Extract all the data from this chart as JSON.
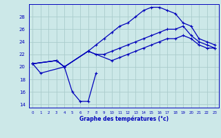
{
  "background_color": "#cce8e8",
  "grid_color": "#aacccc",
  "line_color": "#0000bb",
  "title": "Graphe des températures (°c)",
  "xlim": [
    -0.5,
    23.5
  ],
  "ylim": [
    13.5,
    30.0
  ],
  "yticks": [
    14,
    16,
    18,
    20,
    22,
    24,
    26,
    28
  ],
  "xticks": [
    0,
    1,
    2,
    3,
    4,
    5,
    6,
    7,
    8,
    9,
    10,
    11,
    12,
    13,
    14,
    15,
    16,
    17,
    18,
    19,
    20,
    21,
    22,
    23
  ],
  "curve1_x": [
    0,
    1,
    4,
    5,
    6,
    7,
    8
  ],
  "curve1_y": [
    20.5,
    19.0,
    20.0,
    16.0,
    14.5,
    14.5,
    19.0
  ],
  "curve2_x": [
    0,
    3,
    4,
    7,
    8,
    9,
    10,
    11,
    12,
    13,
    14,
    15,
    16,
    17,
    18,
    19,
    20,
    21,
    22,
    23
  ],
  "curve2_y": [
    20.5,
    21.0,
    20.0,
    22.5,
    23.5,
    24.5,
    25.5,
    26.5,
    27.0,
    28.0,
    29.0,
    29.5,
    29.5,
    29.0,
    28.5,
    27.0,
    26.5,
    24.5,
    24.0,
    23.5
  ],
  "curve3_x": [
    0,
    3,
    4,
    7,
    8,
    9,
    10,
    11,
    12,
    13,
    14,
    15,
    16,
    17,
    18,
    19,
    20,
    21,
    22,
    23
  ],
  "curve3_y": [
    20.5,
    21.0,
    20.0,
    22.5,
    22.0,
    22.0,
    22.5,
    23.0,
    23.5,
    24.0,
    24.5,
    25.0,
    25.5,
    26.0,
    26.0,
    26.5,
    25.0,
    24.0,
    23.5,
    23.0
  ],
  "curve4_x": [
    0,
    3,
    4,
    7,
    10,
    11,
    12,
    13,
    14,
    15,
    16,
    17,
    18,
    19,
    20,
    21,
    22,
    23
  ],
  "curve4_y": [
    20.5,
    21.0,
    20.0,
    22.5,
    21.0,
    21.5,
    22.0,
    22.5,
    23.0,
    23.5,
    24.0,
    24.5,
    24.5,
    25.0,
    24.5,
    23.5,
    23.0,
    23.0
  ]
}
